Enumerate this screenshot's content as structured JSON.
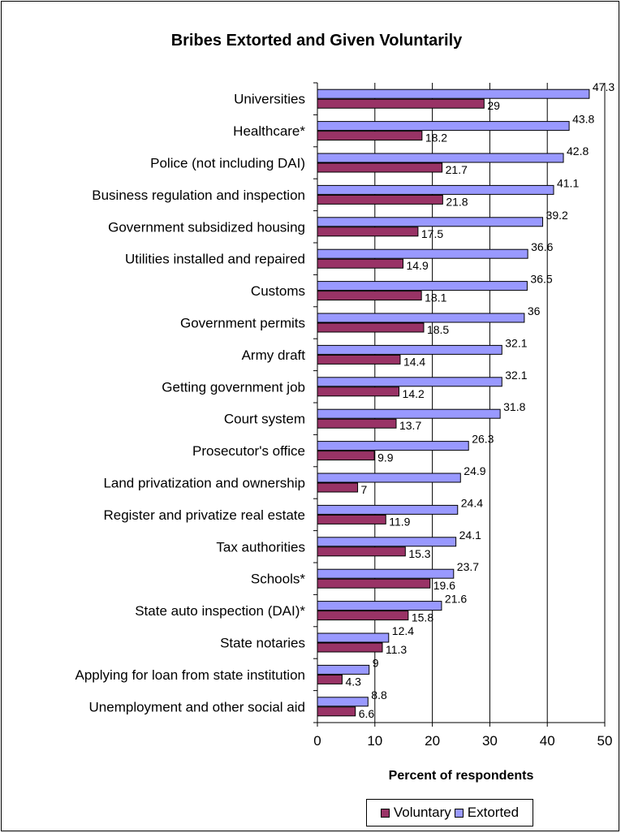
{
  "chart_data": {
    "type": "bar",
    "orientation": "horizontal",
    "title": "Bribes Extorted and Given Voluntarily",
    "xlabel": "Percent of respondents",
    "ylabel": "",
    "xlim": [
      0,
      50
    ],
    "x_ticks": [
      "0",
      "10",
      "20",
      "30",
      "40",
      "50"
    ],
    "grid": "vertical",
    "legend_position": "bottom-right",
    "categories": [
      "Universities",
      "Healthcare*",
      "Police (not including DAI)",
      "Business regulation and inspection",
      "Government subsidized housing",
      "Utilities installed and repaired",
      "Customs",
      "Government permits",
      "Army draft",
      "Getting government job",
      "Court system",
      "Prosecutor's office",
      "Land privatization and ownership",
      "Register and privatize real estate",
      "Tax authorities",
      "Schools*",
      "State auto inspection (DAI)*",
      "State notaries",
      "Applying for loan from state institution",
      "Unemployment and other social aid"
    ],
    "series": [
      {
        "name": "Extorted",
        "color": "#9999ff",
        "values": [
          47.3,
          43.8,
          42.8,
          41.1,
          39.2,
          36.6,
          36.5,
          36,
          32.1,
          32.1,
          31.8,
          26.3,
          24.9,
          24.4,
          24.1,
          23.7,
          21.6,
          12.4,
          9,
          8.8
        ],
        "labels": [
          "47.3",
          "43.8",
          "42.8",
          "41.1",
          "39.2",
          "36.6",
          "36.5",
          "36",
          "32.1",
          "32.1",
          "31.8",
          "26.3",
          "24.9",
          "24.4",
          "24.1",
          "23.7",
          "21.6",
          "12.4",
          "9",
          "8.8"
        ]
      },
      {
        "name": "Voluntary",
        "color": "#993366",
        "values": [
          29,
          18.2,
          21.7,
          21.8,
          17.5,
          14.9,
          18.1,
          18.5,
          14.4,
          14.2,
          13.7,
          9.9,
          7,
          11.9,
          15.3,
          19.6,
          15.8,
          11.3,
          4.3,
          6.6
        ],
        "labels": [
          "29",
          "18.2",
          "21.7",
          "21.8",
          "17.5",
          "14.9",
          "18.1",
          "18.5",
          "14.4",
          "14.2",
          "13.7",
          "9.9",
          "7",
          "11.9",
          "15.3",
          "19.6",
          "15.8",
          "11.3",
          "4.3",
          "6.6"
        ]
      }
    ],
    "legend": [
      "Voluntary",
      "Extorted"
    ]
  }
}
